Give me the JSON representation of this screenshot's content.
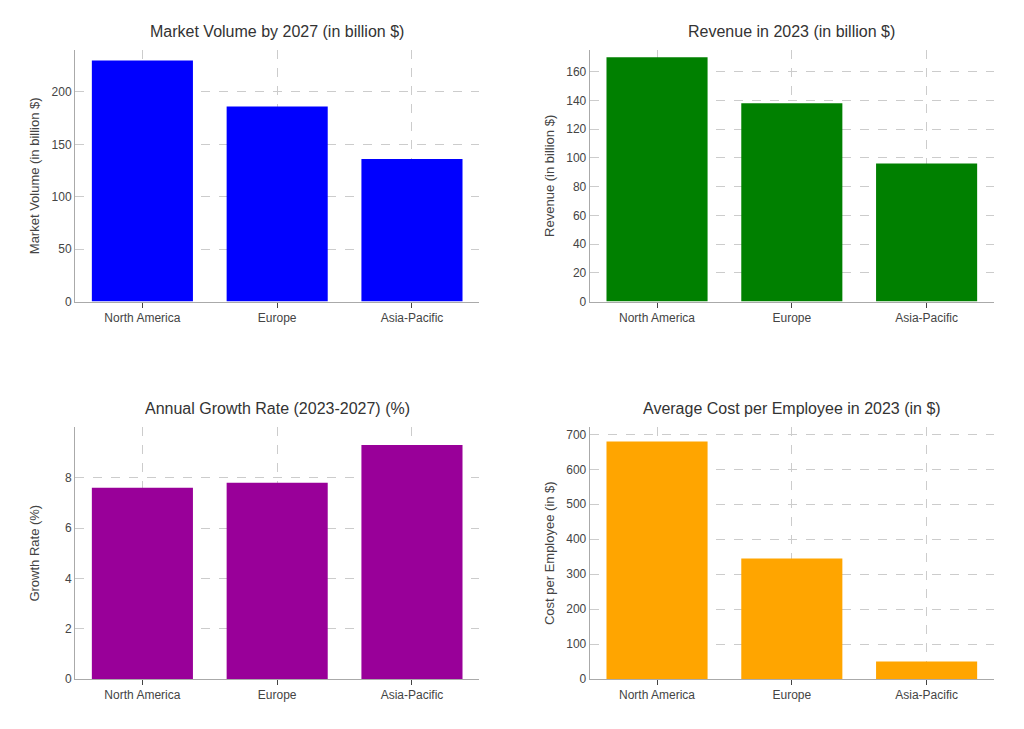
{
  "chart_data": [
    {
      "type": "bar",
      "title": "Market Volume by 2027 (in billion $)",
      "ylabel": "Market Volume (in billion $)",
      "categories": [
        "North America",
        "Europe",
        "Asia-Pacific"
      ],
      "values": [
        230,
        186,
        136
      ],
      "color": "#0000FF",
      "ylim": [
        0,
        240
      ],
      "yticks": [
        0,
        50,
        100,
        150,
        200
      ],
      "grid": true
    },
    {
      "type": "bar",
      "title": "Revenue in 2023 (in billion $)",
      "ylabel": "Revenue (in billion $)",
      "categories": [
        "North America",
        "Europe",
        "Asia-Pacific"
      ],
      "values": [
        170,
        138,
        96
      ],
      "color": "#008000",
      "ylim": [
        0,
        175
      ],
      "yticks": [
        0,
        20,
        40,
        60,
        80,
        100,
        120,
        140,
        160
      ],
      "grid": true
    },
    {
      "type": "bar",
      "title": "Annual Growth Rate (2023-2027) (%)",
      "ylabel": "Growth Rate (%)",
      "categories": [
        "North America",
        "Europe",
        "Asia-Pacific"
      ],
      "values": [
        7.6,
        7.8,
        9.3
      ],
      "color": "#990099",
      "ylim": [
        0,
        10.0
      ],
      "yticks": [
        0,
        2,
        4,
        6,
        8
      ],
      "grid": true
    },
    {
      "type": "bar",
      "title": "Average Cost per Employee in 2023 (in $)",
      "ylabel": "Cost per Employee (in $)",
      "categories": [
        "North America",
        "Europe",
        "Asia-Pacific"
      ],
      "values": [
        680,
        345,
        50
      ],
      "color": "#FFA500",
      "ylim": [
        0,
        720
      ],
      "yticks": [
        0,
        100,
        200,
        300,
        400,
        500,
        600,
        700
      ],
      "grid": true
    }
  ]
}
